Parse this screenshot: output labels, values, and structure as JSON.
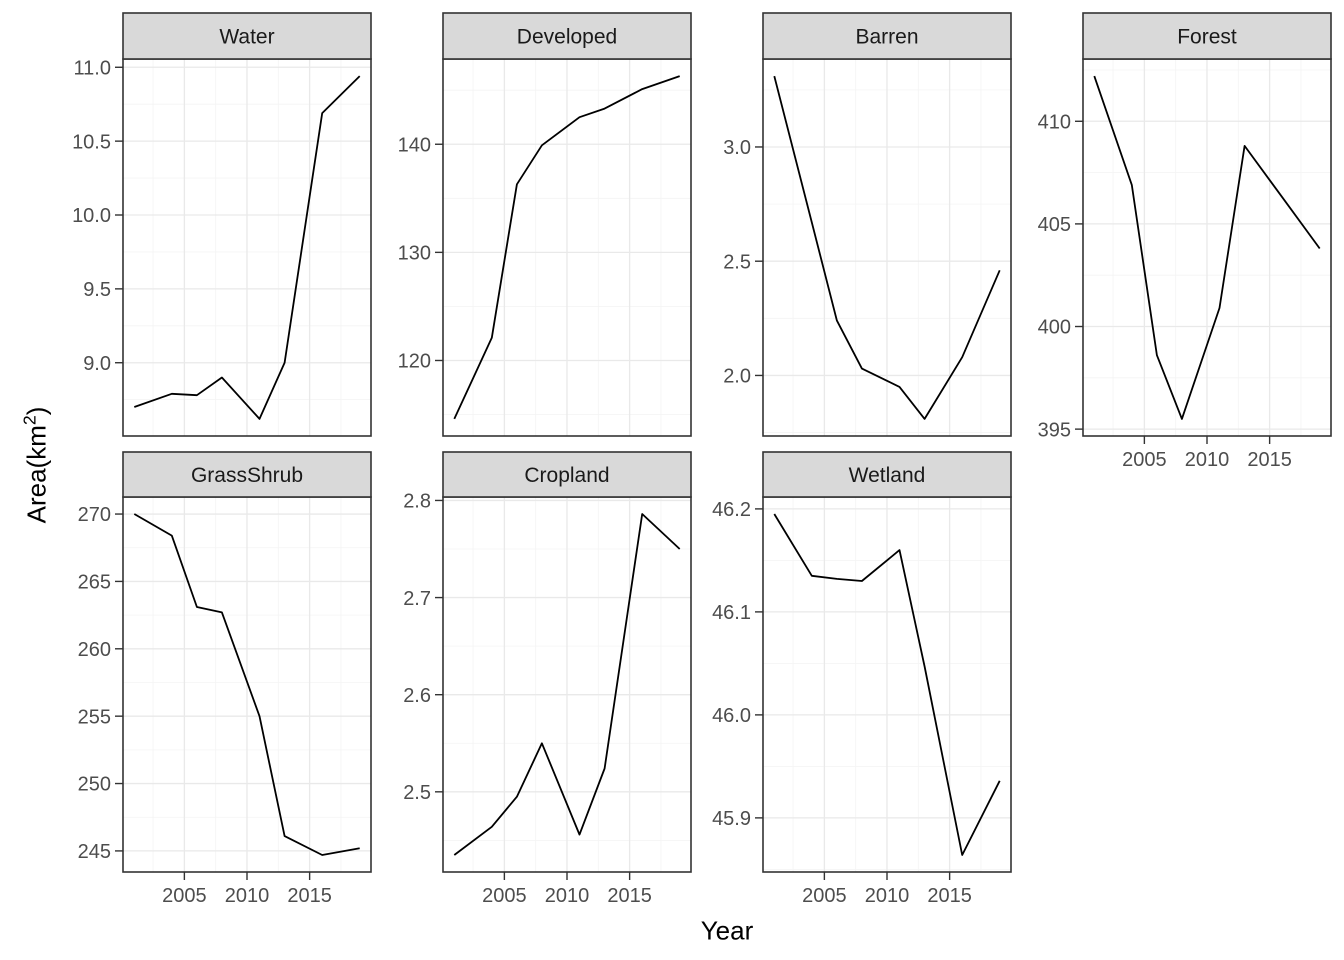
{
  "figure_background": "#ffffff",
  "axis_titles": {
    "x": "Year",
    "y_pre": "Area(km",
    "y_sup": "2",
    "y_post": ")"
  },
  "colors": {
    "data_line": "#000000",
    "panel_background": "#ffffff",
    "panel_border": "#333333",
    "grid_major": "#e9e9e9",
    "grid_minor": "#f4f4f4",
    "strip_fill": "#d9d9d9",
    "strip_border": "#333333",
    "strip_text": "#1a1a1a",
    "tick_mark": "#333333",
    "tick_label": "#4d4d4d",
    "axis_title": "#000000"
  },
  "chart_data": {
    "type": "line",
    "title": "",
    "xlabel": "Year",
    "ylabel": "Area(km2)",
    "legend": "none",
    "grid": "major+minor",
    "facet_layout": "wrap, 4 columns, 2 rows",
    "x": [
      2001,
      2004,
      2006,
      2008,
      2011,
      2013,
      2016,
      2019
    ],
    "x_range": [
      2001,
      2019
    ],
    "x_ticks": {
      "values": [
        2005,
        2010,
        2015
      ],
      "labels": [
        "2005",
        "2010",
        "2015"
      ]
    },
    "facets": [
      {
        "title": "Water",
        "values": [
          8.7,
          8.79,
          8.78,
          8.9,
          8.62,
          9.0,
          10.69,
          10.94
        ],
        "y_ticks": {
          "values": [
            9.0,
            9.5,
            10.0,
            10.5,
            11.0
          ],
          "labels": [
            "9.0",
            "9.5",
            "10.0",
            "10.5",
            "11.0"
          ]
        }
      },
      {
        "title": "Developed",
        "values": [
          114.6,
          122.1,
          136.3,
          139.9,
          142.5,
          143.3,
          145.1,
          146.3
        ],
        "y_ticks": {
          "values": [
            120,
            130,
            140
          ],
          "labels": [
            "120",
            "130",
            "140"
          ]
        }
      },
      {
        "title": "Barren",
        "values": [
          3.31,
          2.67,
          2.24,
          2.03,
          1.95,
          1.81,
          2.08,
          2.46
        ],
        "y_ticks": {
          "values": [
            2.0,
            2.5,
            3.0
          ],
          "labels": [
            "2.0",
            "2.5",
            "3.0"
          ]
        }
      },
      {
        "title": "Forest",
        "values": [
          412.2,
          406.9,
          398.6,
          395.5,
          400.9,
          408.8,
          406.3,
          403.8
        ],
        "y_ticks": {
          "values": [
            395,
            400,
            405,
            410
          ],
          "labels": [
            "395",
            "400",
            "405",
            "410"
          ]
        }
      },
      {
        "title": "GrassShrub",
        "values": [
          270.0,
          268.4,
          263.1,
          262.7,
          255.0,
          246.1,
          244.7,
          245.2
        ],
        "y_ticks": {
          "values": [
            245,
            250,
            255,
            260,
            265,
            270
          ],
          "labels": [
            "245",
            "250",
            "255",
            "260",
            "265",
            "270"
          ]
        }
      },
      {
        "title": "Cropland",
        "values": [
          2.435,
          2.464,
          2.495,
          2.55,
          2.456,
          2.524,
          2.786,
          2.75
        ],
        "y_ticks": {
          "values": [
            2.5,
            2.6,
            2.7,
            2.8
          ],
          "labels": [
            "2.5",
            "2.6",
            "2.7",
            "2.8"
          ]
        }
      },
      {
        "title": "Wetland",
        "values": [
          46.195,
          46.135,
          46.132,
          46.13,
          46.16,
          46.047,
          45.864,
          45.936
        ],
        "y_ticks": {
          "values": [
            45.9,
            46.0,
            46.1,
            46.2
          ],
          "labels": [
            "45.9",
            "46.0",
            "46.1",
            "46.2"
          ]
        }
      }
    ]
  }
}
